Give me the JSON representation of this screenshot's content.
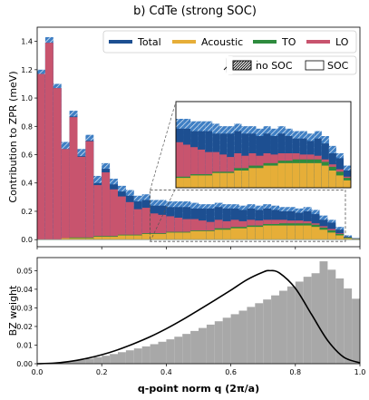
{
  "title": "b) CdTe (strong SOC)",
  "colors": {
    "Total": "#1d4f91",
    "Acoustic": "#e6ae38",
    "TO": "#2e8b3e",
    "LO": "#c8546e",
    "hatch_stroke": "#ffffff",
    "nosoc_total": "#3f7fc4",
    "hist_fill": "#a8a8a8",
    "fit_line": "#000000"
  },
  "chart_data": [
    {
      "type": "bar",
      "stacked": true,
      "ylabel": "Contribution to ZPR (meV)",
      "xlim": [
        0.0,
        1.0
      ],
      "ylim": [
        -0.05,
        1.5
      ],
      "yticks": [
        0.0,
        0.2,
        0.4,
        0.6,
        0.8,
        1.0,
        1.2,
        1.4
      ],
      "show_x_ticklabels": false,
      "legend": {
        "placement": "top-right",
        "entries": [
          "Total",
          "Acoustic",
          "TO",
          "LO"
        ],
        "style_entries": [
          "no SOC",
          "SOC"
        ]
      },
      "bins": 40,
      "series": [
        {
          "name": "Total",
          "variant": "no SOC",
          "values": [
            1.2,
            1.43,
            1.1,
            0.69,
            0.91,
            0.64,
            0.74,
            0.45,
            0.54,
            0.43,
            0.38,
            0.35,
            0.31,
            0.32,
            0.28,
            0.28,
            0.27,
            0.27,
            0.27,
            0.26,
            0.25,
            0.25,
            0.26,
            0.25,
            0.25,
            0.24,
            0.25,
            0.24,
            0.25,
            0.24,
            0.23,
            0.23,
            0.22,
            0.23,
            0.21,
            0.17,
            0.14,
            0.09,
            0.03,
            0.01
          ]
        },
        {
          "name": "Total",
          "variant": "SOC",
          "values": [
            1.17,
            1.39,
            1.07,
            0.64,
            0.87,
            0.59,
            0.7,
            0.4,
            0.5,
            0.39,
            0.34,
            0.31,
            0.27,
            0.28,
            0.24,
            0.24,
            0.23,
            0.23,
            0.23,
            0.22,
            0.22,
            0.22,
            0.23,
            0.22,
            0.22,
            0.21,
            0.22,
            0.21,
            0.22,
            0.21,
            0.2,
            0.2,
            0.19,
            0.2,
            0.18,
            0.14,
            0.12,
            0.07,
            0.02,
            0.01
          ]
        },
        {
          "name": "LO",
          "values": [
            1.17,
            1.39,
            1.07,
            0.63,
            0.85,
            0.57,
            0.68,
            0.36,
            0.45,
            0.33,
            0.27,
            0.23,
            0.18,
            0.18,
            0.14,
            0.13,
            0.11,
            0.1,
            0.09,
            0.08,
            0.07,
            0.06,
            0.06,
            0.05,
            0.05,
            0.04,
            0.04,
            0.035,
            0.03,
            0.03,
            0.025,
            0.02,
            0.02,
            0.015,
            0.01,
            0.01,
            0.01,
            0.005,
            0.0,
            0.0
          ]
        },
        {
          "name": "Acoustic",
          "values": [
            0.0,
            0.0,
            0.0,
            0.01,
            0.01,
            0.01,
            0.01,
            0.02,
            0.02,
            0.02,
            0.03,
            0.03,
            0.03,
            0.04,
            0.04,
            0.04,
            0.05,
            0.05,
            0.05,
            0.06,
            0.06,
            0.06,
            0.07,
            0.07,
            0.08,
            0.08,
            0.09,
            0.09,
            0.1,
            0.1,
            0.1,
            0.1,
            0.1,
            0.1,
            0.09,
            0.07,
            0.05,
            0.03,
            0.01,
            0.005
          ]
        },
        {
          "name": "TO",
          "values": [
            0.0,
            0.0,
            0.0,
            0.0,
            0.005,
            0.005,
            0.005,
            0.005,
            0.005,
            0.005,
            0.005,
            0.005,
            0.005,
            0.005,
            0.005,
            0.005,
            0.005,
            0.005,
            0.005,
            0.005,
            0.005,
            0.005,
            0.01,
            0.01,
            0.01,
            0.01,
            0.01,
            0.01,
            0.01,
            0.01,
            0.015,
            0.015,
            0.015,
            0.015,
            0.015,
            0.015,
            0.015,
            0.01,
            0.005,
            0.0
          ]
        }
      ],
      "inset": {
        "xrange": [
          0.35,
          0.95
        ],
        "yrange": [
          0.0,
          0.35
        ],
        "description_source": "zoom of main panel"
      }
    },
    {
      "type": "bar",
      "xlabel": "q-point norm q (2π/a)",
      "ylabel": "BZ weight",
      "xlim": [
        0.0,
        1.0
      ],
      "ylim": [
        0.0,
        0.057
      ],
      "xticks": [
        "0.0",
        "0.2",
        "0.4",
        "0.6",
        "0.8",
        "1.0"
      ],
      "yticks": [
        "0.00",
        "0.01",
        "0.02",
        "0.03",
        "0.04",
        "0.05"
      ],
      "bins": 40,
      "values": [
        0.0001,
        0.0003,
        0.0006,
        0.001,
        0.0015,
        0.002,
        0.0027,
        0.0035,
        0.0043,
        0.0052,
        0.0062,
        0.0072,
        0.0082,
        0.0093,
        0.0105,
        0.0118,
        0.0131,
        0.0145,
        0.016,
        0.0176,
        0.0192,
        0.021,
        0.0228,
        0.0247,
        0.0266,
        0.0285,
        0.0305,
        0.0325,
        0.0345,
        0.0367,
        0.0392,
        0.0415,
        0.0441,
        0.0467,
        0.0486,
        0.055,
        0.0505,
        0.0458,
        0.0404,
        0.0349
      ],
      "fit_curve": {
        "x": [
          0.0,
          0.05,
          0.1,
          0.15,
          0.2,
          0.25,
          0.3,
          0.35,
          0.4,
          0.45,
          0.5,
          0.55,
          0.6,
          0.65,
          0.7,
          0.72,
          0.75,
          0.8,
          0.85,
          0.9,
          0.95,
          1.0
        ],
        "y": [
          0.0,
          0.0003,
          0.0012,
          0.0027,
          0.0048,
          0.0075,
          0.0108,
          0.0145,
          0.0188,
          0.0236,
          0.0288,
          0.0341,
          0.0395,
          0.0451,
          0.0492,
          0.05,
          0.0488,
          0.0405,
          0.0265,
          0.0125,
          0.0035,
          0.0005
        ]
      }
    }
  ]
}
